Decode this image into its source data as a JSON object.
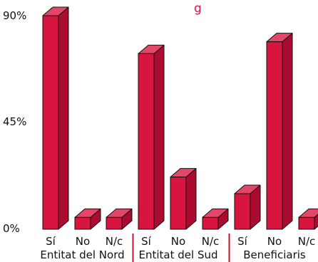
{
  "chart_data": {
    "type": "bar",
    "title": "g",
    "xlabel": "",
    "ylabel": "",
    "ylim": [
      0,
      90
    ],
    "yticks": [
      "0%",
      "45%",
      "90%"
    ],
    "grid": false,
    "groups": [
      {
        "label": "Entitat del Nord",
        "categories": [
          "Sí",
          "No",
          "N/c"
        ],
        "values": [
          90,
          5,
          5
        ]
      },
      {
        "label": "Entitat del Sud",
        "categories": [
          "Sí",
          "No",
          "N/c"
        ],
        "values": [
          74,
          22,
          5
        ]
      },
      {
        "label": "Beneficiaris",
        "categories": [
          "Sí",
          "No",
          "N/c"
        ],
        "values": [
          15,
          79,
          5
        ]
      }
    ],
    "colors": {
      "bar_front": "#d7153f",
      "bar_top": "#e2476a",
      "bar_side": "#a90c2e",
      "bar_outline": "#111111",
      "separator": "#c8102e",
      "title": "#d7153f"
    }
  }
}
